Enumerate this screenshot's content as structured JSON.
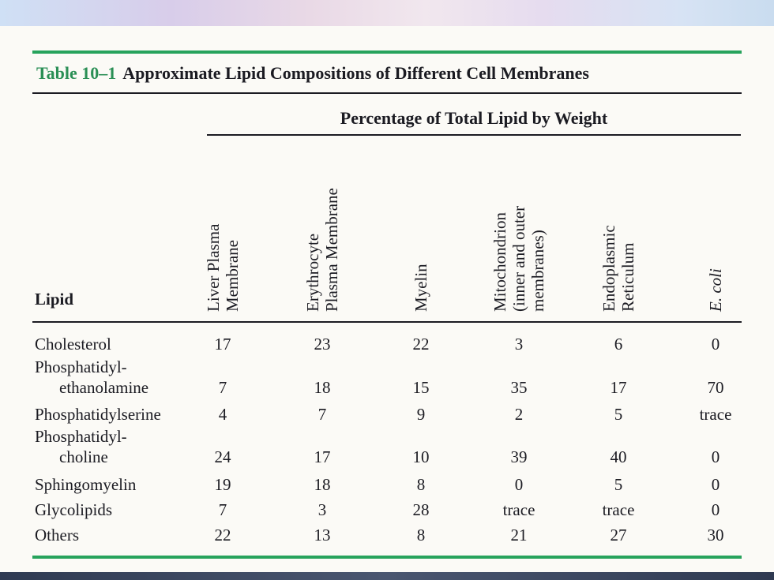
{
  "caption": {
    "number": "Table 10–1",
    "title": "Approximate Lipid Compositions of Different Cell Membranes"
  },
  "group_header": "Percentage of Total Lipid by Weight",
  "row_header": "Lipid",
  "columns": [
    {
      "lines": [
        "Liver Plasma",
        "Membrane"
      ],
      "italic": false
    },
    {
      "lines": [
        "Erythrocyte",
        "Plasma Membrane"
      ],
      "italic": false
    },
    {
      "lines": [
        "Myelin"
      ],
      "italic": false
    },
    {
      "lines": [
        "Mitochondrion",
        "(inner and outer",
        "membranes)"
      ],
      "italic": false
    },
    {
      "lines": [
        "Endoplasmic",
        "Reticulum"
      ],
      "italic": false
    },
    {
      "lines": [
        "E. coli"
      ],
      "italic": true
    }
  ],
  "rows": [
    {
      "label": [
        "Cholesterol"
      ],
      "values": [
        "17",
        "23",
        "22",
        "3",
        "6",
        "0"
      ]
    },
    {
      "label": [
        "Phosphatidyl-",
        "ethanolamine"
      ],
      "values": [
        "7",
        "18",
        "15",
        "35",
        "17",
        "70"
      ]
    },
    {
      "label": [
        "Phosphatidylserine"
      ],
      "values": [
        "4",
        "7",
        "9",
        "2",
        "5",
        "trace"
      ]
    },
    {
      "label": [
        "Phosphatidyl-",
        "choline"
      ],
      "values": [
        "24",
        "17",
        "10",
        "39",
        "40",
        "0"
      ]
    },
    {
      "label": [
        "Sphingomyelin"
      ],
      "values": [
        "19",
        "18",
        "8",
        "0",
        "5",
        "0"
      ]
    },
    {
      "label": [
        "Glycolipids"
      ],
      "values": [
        "7",
        "3",
        "28",
        "trace",
        "trace",
        "0"
      ]
    },
    {
      "label": [
        "Others"
      ],
      "values": [
        "22",
        "13",
        "8",
        "21",
        "27",
        "30"
      ]
    }
  ],
  "colors": {
    "accent_green": "#27a35c",
    "text": "#1b1b22"
  }
}
